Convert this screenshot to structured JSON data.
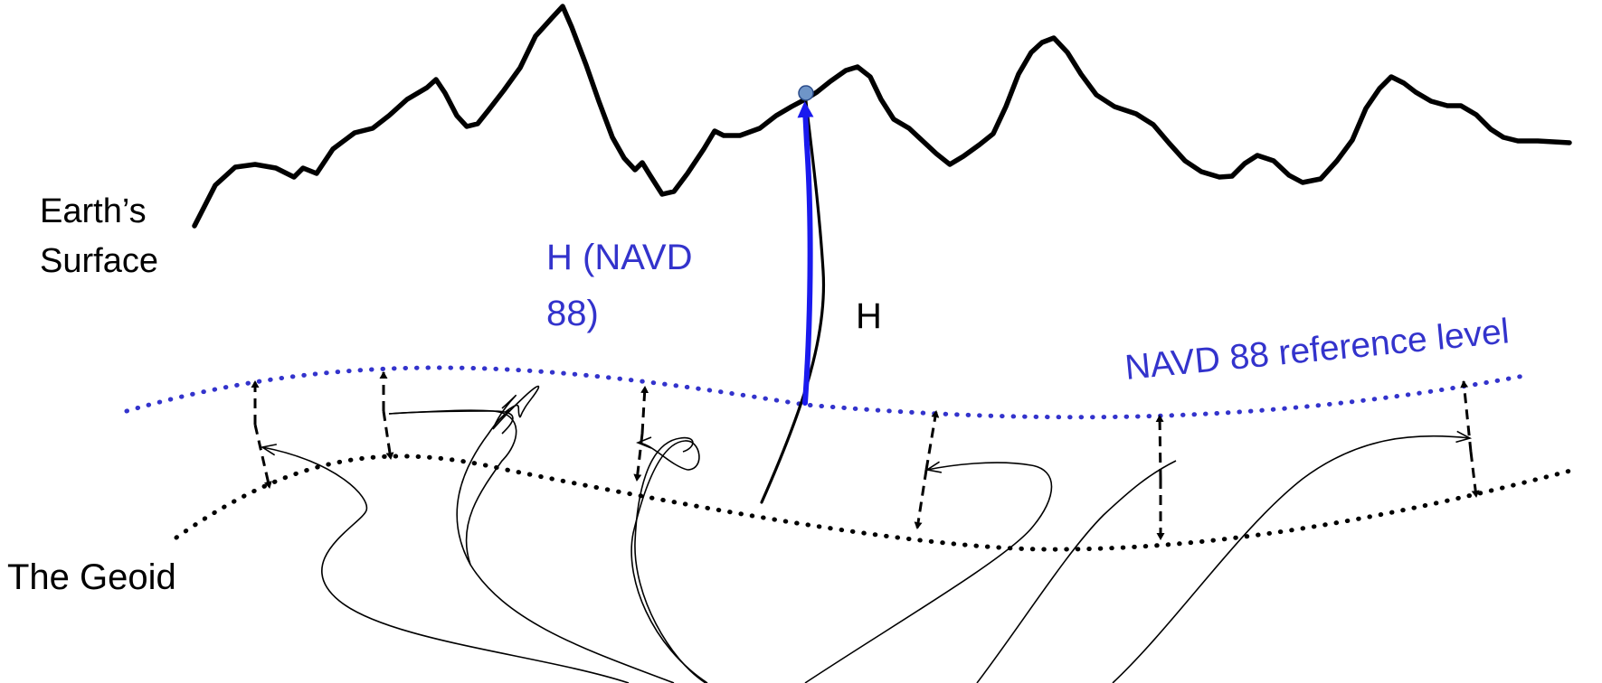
{
  "labels": {
    "surface_line1": "Earth’s",
    "surface_line2": "Surface",
    "geoid": "The Geoid",
    "h_navd_line1": "H (NAVD",
    "h_navd_line2": "88)",
    "h": "H",
    "navd_reference": "NAVD 88 reference level"
  },
  "colors": {
    "surface": "#000000",
    "navd": "#3333cc",
    "geoid": "#000000",
    "h_navd_arrow": "#1a1aee",
    "h_curve": "#000000",
    "point": "#6f95c8"
  }
}
